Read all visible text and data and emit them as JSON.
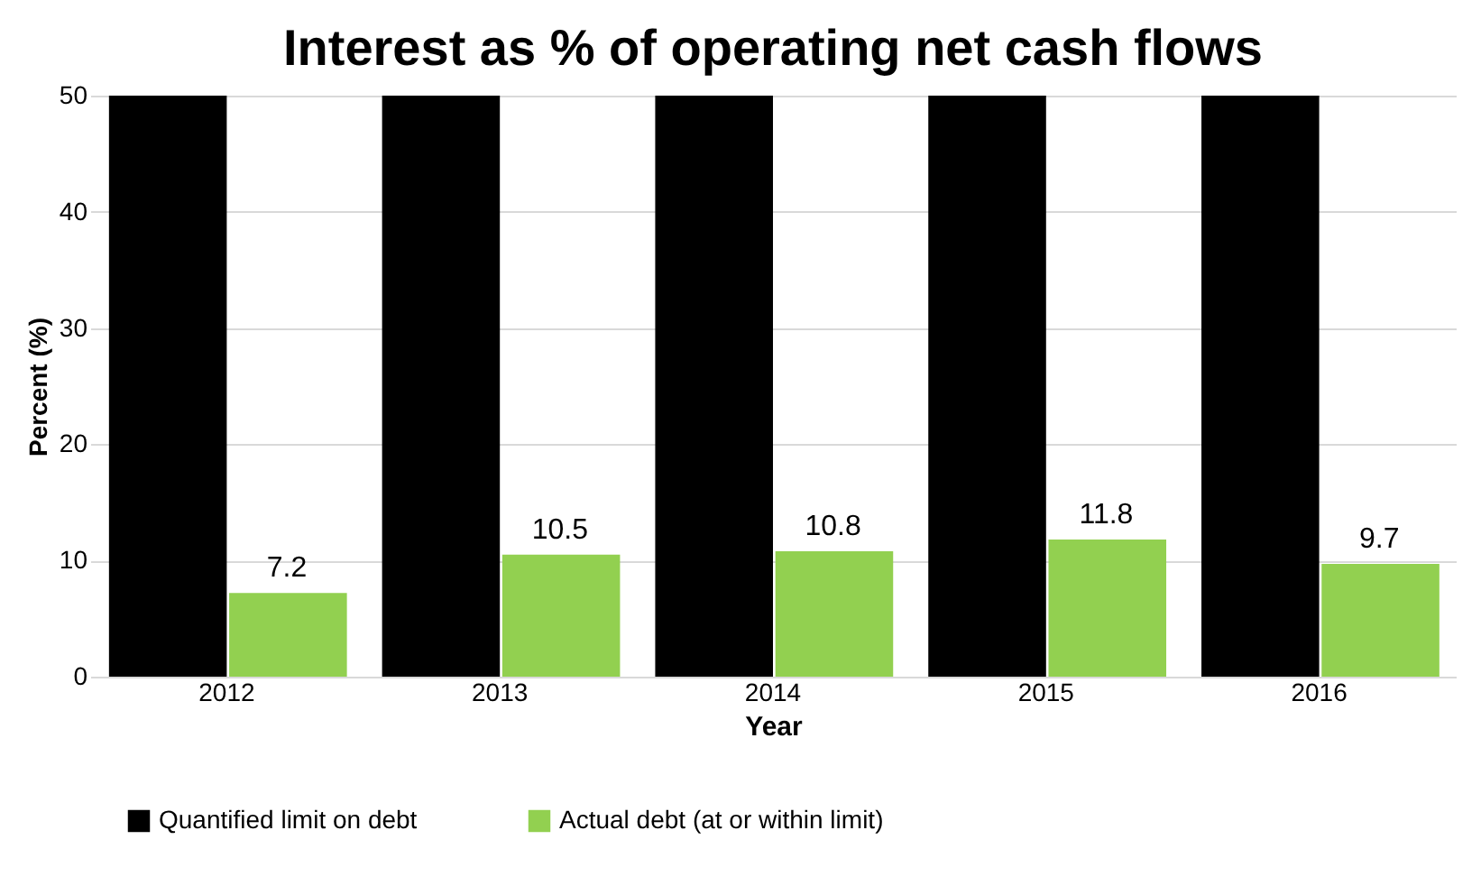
{
  "chart_data": {
    "type": "bar",
    "title": "Interest as % of operating net cash flows",
    "xlabel": "Year",
    "ylabel": "Percent (%)",
    "categories": [
      "2012",
      "2013",
      "2014",
      "2015",
      "2016"
    ],
    "series": [
      {
        "name": "Quantified limit on debt",
        "color": "#000000",
        "values": [
          50,
          50,
          50,
          50,
          50
        ]
      },
      {
        "name": "Actual debt (at or within limit)",
        "color": "#92d050",
        "values": [
          7.2,
          10.5,
          10.8,
          11.8,
          9.7
        ],
        "value_labels": [
          "7.2",
          "10.5",
          "10.8",
          "11.8",
          "9.7"
        ]
      }
    ],
    "ylim": [
      0,
      50
    ],
    "yticks": [
      0,
      10,
      20,
      30,
      40,
      50
    ],
    "grid": "y",
    "legend": "bottom"
  }
}
